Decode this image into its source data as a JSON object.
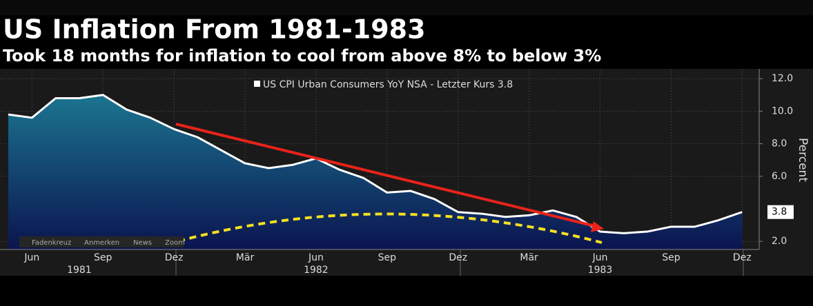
{
  "chart_data": {
    "type": "area",
    "title": "US Inflation From 1981-1983",
    "subtitle": "Took 18 months for inflation to cool from above 8% to below 3%",
    "y_label": "Percent",
    "categories": [
      null,
      "Jun",
      null,
      null,
      "Sep",
      null,
      null,
      "Dez",
      null,
      null,
      "Mär",
      null,
      null,
      "Jun",
      null,
      null,
      "Sep",
      null,
      null,
      "Dez",
      null,
      null,
      "Mär",
      null,
      null,
      "Jun",
      null,
      null,
      "Sep",
      null,
      null,
      "Dez"
    ],
    "years": [
      null,
      null,
      null,
      "1981",
      null,
      null,
      null,
      null,
      null,
      null,
      null,
      null,
      null,
      "1982",
      null,
      null,
      null,
      null,
      null,
      null,
      null,
      null,
      null,
      null,
      null,
      "1983",
      null,
      null,
      null,
      null,
      null,
      null
    ],
    "series": [
      {
        "name": "US CPI Urban Consumers YoY NSA - Letzter Kurs 3.8",
        "color": "#ffffff",
        "values": [
          9.8,
          9.6,
          10.8,
          10.8,
          11.0,
          10.1,
          9.6,
          8.9,
          8.4,
          7.6,
          6.8,
          6.5,
          6.7,
          7.1,
          6.4,
          5.9,
          5.0,
          5.1,
          4.6,
          3.8,
          3.7,
          3.5,
          3.6,
          3.9,
          3.5,
          2.6,
          2.5,
          2.6,
          2.9,
          2.9,
          3.3,
          3.8
        ]
      }
    ],
    "ylim": [
      1.5,
      12.6
    ],
    "yticks": [
      {
        "value": 2,
        "label": "2.0"
      },
      {
        "value": 6,
        "label": "6.0"
      },
      {
        "value": 8,
        "label": "8.0"
      },
      {
        "value": 10,
        "label": "10.0"
      },
      {
        "value": 12,
        "label": "12.0"
      }
    ],
    "grid": true,
    "toolbar": [
      "Fadenkreuz",
      "Anmerken",
      "News",
      "Zoom"
    ]
  }
}
